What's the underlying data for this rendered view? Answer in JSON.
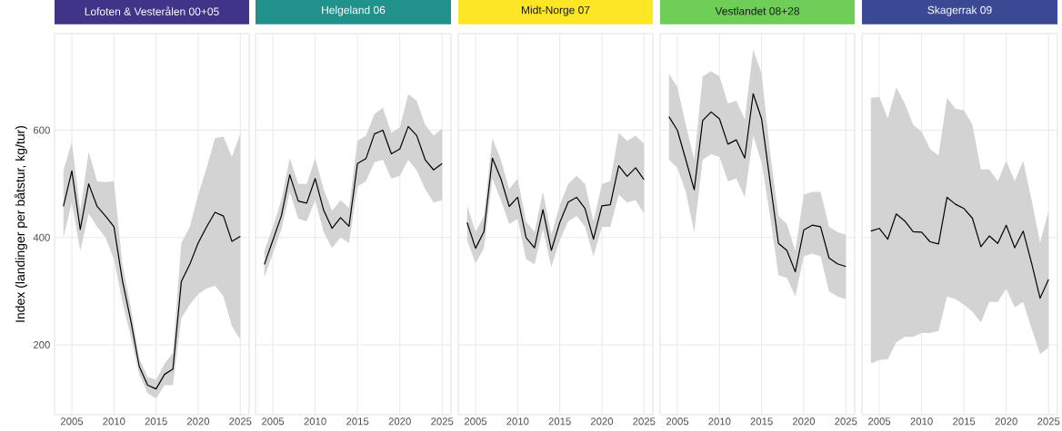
{
  "chart_data": [
    {
      "type": "line",
      "title": "Lofoten & Vesterålen 00+05",
      "ylabel": "Index (landinger per båtstur, kg/tur)",
      "x": [
        2004,
        2005,
        2006,
        2007,
        2008,
        2009,
        2010,
        2011,
        2012,
        2013,
        2014,
        2015,
        2016,
        2017,
        2018,
        2019,
        2020,
        2021,
        2022,
        2023,
        2024,
        2025
      ],
      "xlim": [
        2002.95,
        2026.05
      ],
      "ylim": [
        70,
        780
      ],
      "xticks": [
        2005,
        2010,
        2015,
        2020,
        2025
      ],
      "yticks": [
        200,
        400,
        600
      ],
      "grid": true,
      "series": [
        {
          "type": "line",
          "color": "#000000",
          "values": [
            458,
            524,
            415,
            500,
            458,
            440,
            420,
            320,
            245,
            160,
            125,
            118,
            145,
            155,
            318,
            350,
            390,
            420,
            447,
            440,
            393,
            402
          ],
          "lower": [
            400,
            465,
            375,
            445,
            420,
            400,
            360,
            280,
            215,
            145,
            110,
            100,
            125,
            125,
            250,
            275,
            295,
            305,
            310,
            290,
            235,
            210
          ],
          "upper": [
            525,
            578,
            450,
            560,
            505,
            503,
            505,
            350,
            270,
            175,
            140,
            135,
            165,
            185,
            390,
            420,
            480,
            530,
            585,
            588,
            550,
            593
          ]
        }
      ]
    },
    {
      "type": "line",
      "title": "Helgeland 06",
      "x": [
        2004,
        2005,
        2006,
        2007,
        2008,
        2009,
        2010,
        2011,
        2012,
        2013,
        2014,
        2015,
        2016,
        2017,
        2018,
        2019,
        2020,
        2021,
        2022,
        2023,
        2024,
        2025
      ],
      "xlim": [
        2002.95,
        2026.05
      ],
      "ylim": [
        70,
        780
      ],
      "xticks": [
        2005,
        2010,
        2015,
        2020,
        2025
      ],
      "yticks": [
        200,
        400,
        600
      ],
      "grid": true,
      "tick_labels": "x",
      "series": [
        {
          "type": "line",
          "color": "#000000",
          "values": [
            350,
            395,
            440,
            517,
            468,
            464,
            510,
            451,
            417,
            437,
            421,
            538,
            547,
            593,
            600,
            556,
            565,
            607,
            590,
            545,
            526,
            538
          ],
          "lower": [
            326,
            370,
            415,
            485,
            435,
            430,
            470,
            410,
            380,
            400,
            390,
            495,
            505,
            540,
            545,
            510,
            515,
            545,
            525,
            490,
            465,
            470
          ],
          "upper": [
            375,
            420,
            470,
            548,
            500,
            500,
            548,
            490,
            450,
            470,
            455,
            580,
            590,
            630,
            642,
            595,
            605,
            667,
            655,
            610,
            590,
            603
          ]
        }
      ]
    },
    {
      "type": "line",
      "title": "Midt-Norge 07",
      "x": [
        2004,
        2005,
        2006,
        2007,
        2008,
        2009,
        2010,
        2011,
        2012,
        2013,
        2014,
        2015,
        2016,
        2017,
        2018,
        2019,
        2020,
        2021,
        2022,
        2023,
        2024,
        2025
      ],
      "xlim": [
        2002.95,
        2026.05
      ],
      "ylim": [
        70,
        780
      ],
      "xticks": [
        2005,
        2010,
        2015,
        2020,
        2025
      ],
      "yticks": [
        200,
        400,
        600
      ],
      "grid": true,
      "tick_labels": "x",
      "series": [
        {
          "type": "line",
          "color": "#000000",
          "values": [
            428,
            380,
            411,
            548,
            510,
            458,
            475,
            400,
            381,
            452,
            376,
            428,
            466,
            475,
            454,
            397,
            459,
            461,
            534,
            514,
            530,
            508
          ],
          "lower": [
            395,
            352,
            380,
            510,
            470,
            425,
            435,
            360,
            350,
            415,
            345,
            395,
            430,
            440,
            420,
            365,
            420,
            420,
            480,
            465,
            470,
            445
          ],
          "upper": [
            460,
            410,
            440,
            585,
            545,
            490,
            510,
            430,
            410,
            485,
            405,
            460,
            500,
            515,
            500,
            430,
            500,
            505,
            595,
            580,
            590,
            575
          ]
        }
      ]
    },
    {
      "type": "line",
      "title": "Vestlandet 08+28",
      "x": [
        2004,
        2005,
        2006,
        2007,
        2008,
        2009,
        2010,
        2011,
        2012,
        2013,
        2014,
        2015,
        2016,
        2017,
        2018,
        2019,
        2020,
        2021,
        2022,
        2023,
        2024,
        2025
      ],
      "xlim": [
        2002.95,
        2026.05
      ],
      "ylim": [
        70,
        780
      ],
      "xticks": [
        2005,
        2010,
        2015,
        2020,
        2025
      ],
      "yticks": [
        200,
        400,
        600
      ],
      "grid": true,
      "tick_labels": "x",
      "series": [
        {
          "type": "line",
          "color": "#000000",
          "values": [
            625,
            600,
            545,
            489,
            618,
            634,
            621,
            574,
            582,
            548,
            668,
            621,
            505,
            389,
            376,
            336,
            414,
            423,
            420,
            362,
            351,
            346
          ],
          "lower": [
            545,
            530,
            485,
            410,
            545,
            555,
            550,
            505,
            510,
            475,
            590,
            540,
            440,
            330,
            325,
            290,
            365,
            370,
            365,
            300,
            290,
            285
          ],
          "upper": [
            705,
            680,
            610,
            545,
            700,
            710,
            700,
            650,
            655,
            620,
            750,
            705,
            560,
            440,
            425,
            375,
            480,
            485,
            485,
            420,
            410,
            405
          ]
        }
      ]
    },
    {
      "type": "line",
      "title": "Skagerrak 09",
      "x": [
        2004,
        2005,
        2006,
        2007,
        2008,
        2009,
        2010,
        2011,
        2012,
        2013,
        2014,
        2015,
        2016,
        2017,
        2018,
        2019,
        2020,
        2021,
        2022,
        2023,
        2024,
        2025
      ],
      "xlim": [
        2002.95,
        2026.05
      ],
      "ylim": [
        70,
        780
      ],
      "xticks": [
        2005,
        2010,
        2015,
        2020,
        2025
      ],
      "yticks": [
        200,
        400,
        600
      ],
      "grid": true,
      "tick_labels": "x",
      "series": [
        {
          "type": "line",
          "color": "#000000",
          "values": [
            412,
            417,
            397,
            444,
            431,
            411,
            410,
            392,
            388,
            475,
            462,
            454,
            436,
            383,
            403,
            389,
            423,
            381,
            412,
            352,
            287,
            322
          ],
          "lower": [
            165,
            172,
            173,
            205,
            215,
            215,
            222,
            222,
            226,
            290,
            285,
            275,
            262,
            242,
            280,
            280,
            305,
            270,
            280,
            230,
            183,
            195
          ],
          "upper": [
            660,
            662,
            622,
            680,
            650,
            610,
            597,
            565,
            553,
            660,
            640,
            637,
            610,
            527,
            527,
            505,
            543,
            505,
            543,
            470,
            390,
            450
          ]
        }
      ]
    }
  ]
}
